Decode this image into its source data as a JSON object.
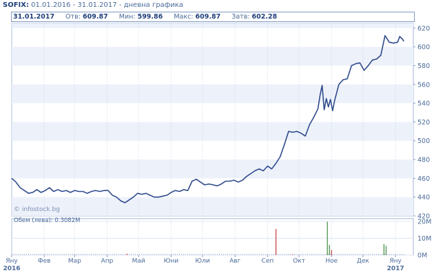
{
  "header": {
    "ticker": "SOFIX:",
    "subtitle": "01.01.2016 - 31.01.2017 - дневна графика"
  },
  "info_bar": {
    "date": "31.01.2017",
    "open_label": "Отв:",
    "open_value": "609.87",
    "min_label": "Мин:",
    "min_value": "599.86",
    "max_label": "Макс:",
    "max_value": "609.87",
    "close_label": "Затв:",
    "close_value": "602.28"
  },
  "watermark": "© infostock.bg",
  "volume_label": "Обем (лева): 0.3082M",
  "colors": {
    "price_line": "#2e4a8c",
    "band_light": "#edf1fa",
    "band_white": "#ffffff",
    "volume_green": "#3d8a3d",
    "volume_red": "#c23a3a",
    "axis_text": "#4a6a9a"
  },
  "chart_data": [
    {
      "type": "line",
      "series": [
        {
          "values": [
            [
              0,
              460
            ],
            [
              4,
              456
            ],
            [
              8,
              450
            ],
            [
              12,
              447
            ],
            [
              16,
              444
            ],
            [
              20,
              445
            ],
            [
              24,
              448
            ],
            [
              28,
              445
            ],
            [
              32,
              447
            ],
            [
              36,
              450
            ],
            [
              40,
              446
            ],
            [
              44,
              448
            ],
            [
              48,
              446
            ],
            [
              52,
              447
            ],
            [
              56,
              445
            ],
            [
              60,
              447
            ],
            [
              64,
              446
            ],
            [
              68,
              446
            ],
            [
              72,
              444
            ],
            [
              76,
              446
            ],
            [
              80,
              447
            ],
            [
              84,
              446
            ],
            [
              88,
              447
            ],
            [
              92,
              447
            ],
            [
              96,
              442
            ],
            [
              100,
              440
            ],
            [
              104,
              436
            ],
            [
              108,
              434
            ],
            [
              112,
              437
            ],
            [
              116,
              440
            ],
            [
              120,
              444
            ],
            [
              124,
              443
            ],
            [
              128,
              444
            ],
            [
              132,
              442
            ],
            [
              136,
              440
            ],
            [
              140,
              440
            ],
            [
              144,
              441
            ],
            [
              148,
              442
            ],
            [
              152,
              445
            ],
            [
              156,
              447
            ],
            [
              160,
              446
            ],
            [
              164,
              448
            ],
            [
              168,
              447
            ],
            [
              172,
              457
            ],
            [
              176,
              459
            ],
            [
              180,
              456
            ],
            [
              184,
              453
            ],
            [
              188,
              454
            ],
            [
              192,
              453
            ],
            [
              196,
              452
            ],
            [
              200,
              454
            ],
            [
              204,
              457
            ],
            [
              208,
              457
            ],
            [
              212,
              458
            ],
            [
              216,
              456
            ],
            [
              220,
              458
            ],
            [
              224,
              462
            ],
            [
              228,
              465
            ],
            [
              232,
              468
            ],
            [
              236,
              470
            ],
            [
              240,
              468
            ],
            [
              244,
              473
            ],
            [
              248,
              470
            ],
            [
              252,
              476
            ],
            [
              256,
              483
            ],
            [
              260,
              496
            ],
            [
              264,
              510
            ],
            [
              268,
              509
            ],
            [
              272,
              510
            ],
            [
              276,
              508
            ],
            [
              280,
              505
            ],
            [
              284,
              517
            ],
            [
              288,
              525
            ],
            [
              292,
              534
            ],
            [
              294,
              548
            ],
            [
              296,
              559
            ],
            [
              298,
              533
            ],
            [
              300,
              545
            ],
            [
              302,
              536
            ],
            [
              304,
              544
            ],
            [
              306,
              532
            ],
            [
              308,
              543
            ],
            [
              312,
              560
            ],
            [
              316,
              565
            ],
            [
              320,
              566
            ],
            [
              324,
              580
            ],
            [
              328,
              582
            ],
            [
              332,
              583
            ],
            [
              336,
              575
            ],
            [
              340,
              580
            ],
            [
              344,
              586
            ],
            [
              348,
              587
            ],
            [
              352,
              591
            ],
            [
              356,
              612
            ],
            [
              360,
              605
            ],
            [
              364,
              604
            ],
            [
              368,
              605
            ],
            [
              370,
              611
            ],
            [
              372,
              609
            ],
            [
              374,
              606
            ]
          ]
        }
      ],
      "y_ticks": [
        420,
        440,
        460,
        480,
        500,
        520,
        540,
        560,
        580,
        600,
        620
      ],
      "ylim": [
        420,
        625
      ],
      "xlim": [
        0,
        383
      ],
      "grid": true
    },
    {
      "type": "bar",
      "volume_label": "Обем (лева): 0.3082M",
      "y_ticks": [
        "0M",
        "10M",
        "20M"
      ],
      "ylim": [
        0,
        20
      ],
      "spikes": [
        {
          "x": 110,
          "value": 0.8,
          "color": "red"
        },
        {
          "x": 252,
          "value": 15.5,
          "color": "red"
        },
        {
          "x": 268,
          "value": 0.5,
          "color": "red"
        },
        {
          "x": 301,
          "value": 19.8,
          "color": "green"
        },
        {
          "x": 303,
          "value": 6.0,
          "color": "green"
        },
        {
          "x": 305,
          "value": 3.0,
          "color": "red"
        },
        {
          "x": 355,
          "value": 6.5,
          "color": "green"
        },
        {
          "x": 357,
          "value": 5.5,
          "color": "green"
        }
      ],
      "baseline_value": 0.3
    },
    {
      "type": "table",
      "x_labels": [
        {
          "label": "Яну",
          "x": 0
        },
        {
          "label": "Фев",
          "x": 31
        },
        {
          "label": "Мар",
          "x": 60
        },
        {
          "label": "Апр",
          "x": 91
        },
        {
          "label": "Май",
          "x": 121
        },
        {
          "label": "Юни",
          "x": 152
        },
        {
          "label": "Юли",
          "x": 182
        },
        {
          "label": "Авг",
          "x": 213
        },
        {
          "label": "Сеп",
          "x": 244
        },
        {
          "label": "Окт",
          "x": 274
        },
        {
          "label": "Ное",
          "x": 305
        },
        {
          "label": "Дек",
          "x": 335
        },
        {
          "label": "Яну",
          "x": 366
        }
      ],
      "year_labels": [
        {
          "label": "2016",
          "x": 0
        },
        {
          "label": "2017",
          "x": 366
        }
      ]
    }
  ]
}
